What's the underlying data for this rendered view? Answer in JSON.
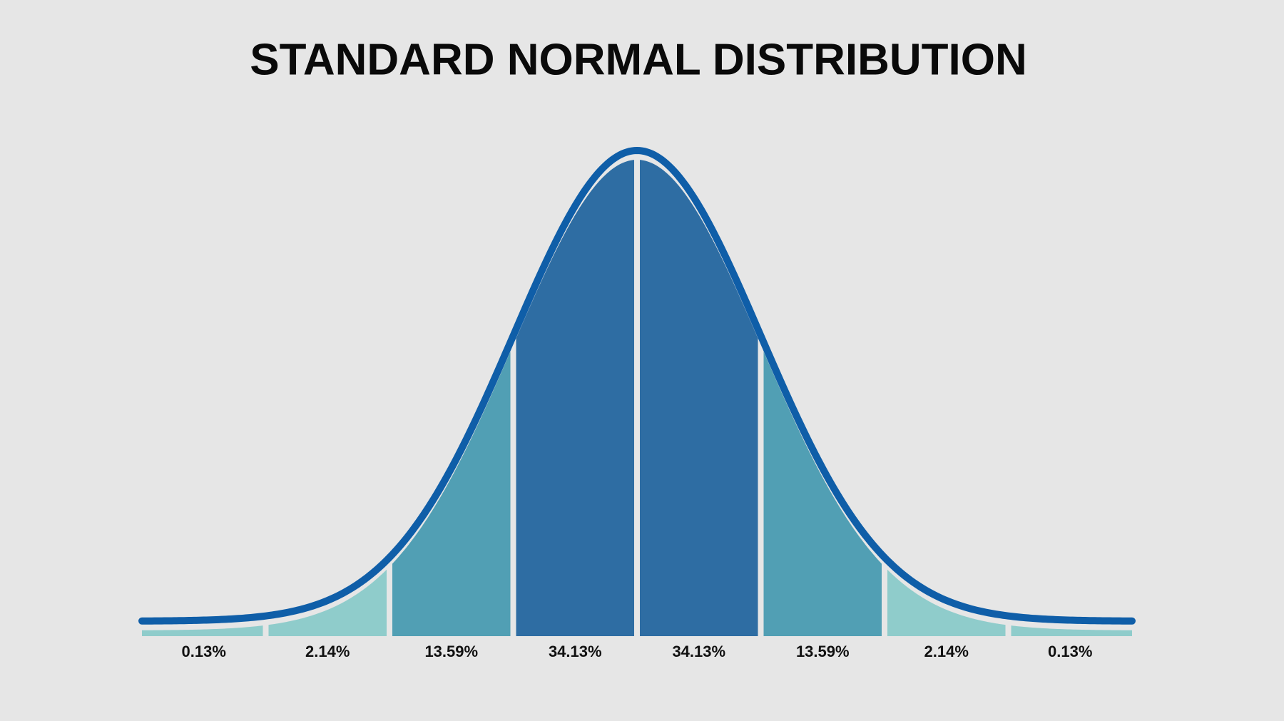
{
  "chart_data": {
    "type": "bell",
    "title": "STANDARD NORMAL DISTRIBUTION",
    "values": [
      0.13,
      2.14,
      13.59,
      34.13,
      34.13,
      13.59,
      2.14,
      0.13
    ],
    "value_labels": [
      "0.13%",
      "2.14%",
      "13.59%",
      "34.13%",
      "34.13%",
      "13.59%",
      "2.14%",
      "0.13%"
    ],
    "colors": [
      "#8fcccb",
      "#8fcccb",
      "#519fb4",
      "#2e6da3",
      "#2e6da3",
      "#519fb4",
      "#8fcccb",
      "#8fcccb"
    ],
    "line_color": "#0f5ea8"
  }
}
